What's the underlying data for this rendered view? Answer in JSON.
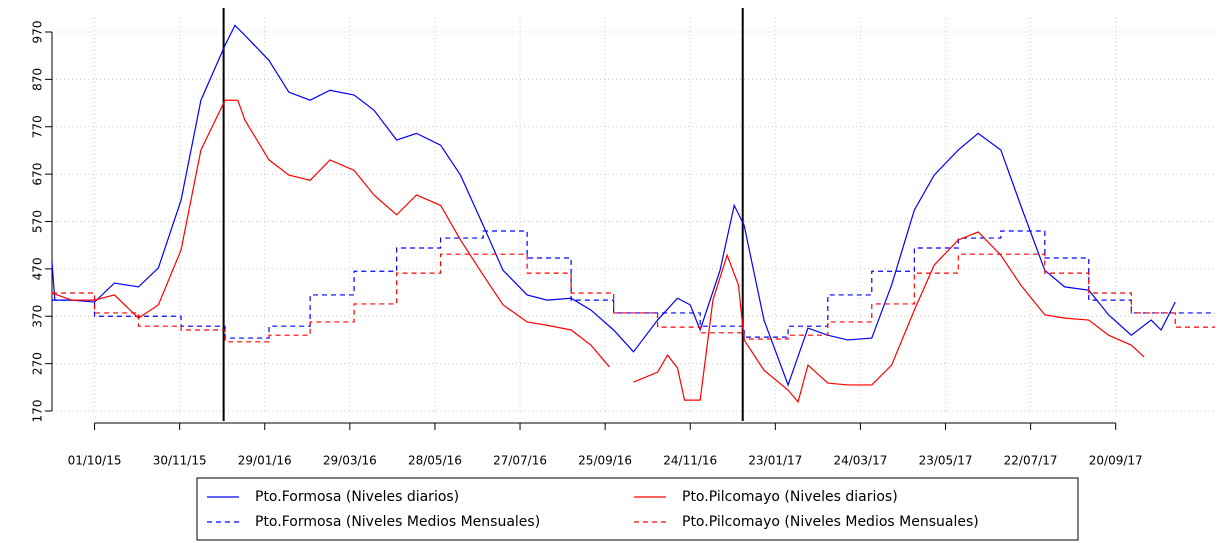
{
  "chart_data": {
    "type": "line",
    "xlim": [
      "01/09/15",
      "29/11/17"
    ],
    "ylim": [
      170,
      1000
    ],
    "xticks": [
      "01/10/15",
      "30/11/15",
      "29/01/16",
      "29/03/16",
      "28/05/16",
      "27/07/16",
      "25/09/16",
      "24/11/16",
      "23/01/17",
      "24/03/17",
      "23/05/17",
      "22/07/17",
      "20/09/17"
    ],
    "yticks": [
      170,
      270,
      370,
      470,
      570,
      670,
      770,
      870,
      970
    ],
    "grid": true,
    "vlines": [
      "31/12/15",
      "31/12/16"
    ],
    "legend": "bottom",
    "series": [
      {
        "name": "Pto.Formosa (Niveles diarios)",
        "color": "#0000ff",
        "line_style": "solid",
        "x": [
          "01/09/15",
          "03/09/15",
          "15/09/15",
          "01/10/15",
          "15/10/15",
          "01/11/15",
          "15/11/15",
          "01/12/15",
          "15/12/15",
          "01/01/16",
          "08/01/16",
          "15/01/16",
          "01/02/16",
          "15/02/16",
          "01/03/16",
          "15/03/16",
          "01/04/16",
          "15/04/16",
          "01/05/16",
          "15/05/16",
          "01/06/16",
          "15/06/16",
          "01/07/16",
          "15/07/16",
          "01/08/16",
          "15/08/16",
          "01/09/16",
          "15/09/16",
          "01/10/16",
          "15/10/16",
          "01/11/16",
          "15/11/16",
          "24/11/16",
          "01/12/16",
          "15/12/16",
          "25/12/16",
          "01/01/17",
          "15/01/17",
          "01/02/17",
          "15/02/17",
          "01/03/17",
          "15/03/17",
          "01/04/17",
          "15/04/17",
          "01/05/17",
          "15/05/17",
          "01/06/17",
          "15/06/17",
          "01/07/17",
          "15/07/17",
          "01/08/17",
          "15/08/17",
          "01/09/17",
          "15/09/17",
          "01/10/17",
          "15/10/17",
          "22/10/17",
          "01/11/17"
        ],
        "values": [
          484,
          404,
          404,
          400,
          440,
          432,
          472,
          615,
          826,
          942,
          984,
          963,
          910,
          843,
          826,
          847,
          837,
          805,
          742,
          756,
          731,
          668,
          562,
          467,
          415,
          404,
          408,
          383,
          341,
          295,
          362,
          408,
          394,
          341,
          467,
          604,
          562,
          362,
          225,
          345,
          330,
          320,
          324,
          436,
          594,
          668,
          721,
          756,
          721,
          604,
          467,
          432,
          425,
          373,
          330,
          362,
          341,
          400
        ]
      },
      {
        "name": "Pto.Formosa (Niveles Medios Mensuales)",
        "color": "#0000ff",
        "line_style": "dashed",
        "step": true,
        "x": [
          "01/09/15",
          "01/10/15",
          "01/11/15",
          "01/12/15",
          "01/01/16",
          "01/02/16",
          "01/03/16",
          "01/04/16",
          "01/05/16",
          "01/06/16",
          "01/07/16",
          "01/08/16",
          "01/09/16",
          "01/10/16",
          "01/11/16",
          "01/12/16",
          "01/01/17",
          "01/02/17",
          "01/03/17",
          "01/04/17",
          "01/05/17",
          "01/06/17",
          "01/07/17",
          "01/08/17",
          "01/09/17",
          "01/10/17",
          "01/11/17",
          "29/11/17"
        ],
        "values": [
          404,
          370,
          370,
          349,
          324,
          349,
          415,
          465,
          514,
          535,
          550,
          493,
          404,
          377,
          377,
          349,
          326,
          349,
          415,
          465,
          514,
          535,
          550,
          493,
          404,
          377,
          377,
          377
        ]
      },
      {
        "name": "Pto.Pilcomayo (Niveles diarios)",
        "color": "#ff0000",
        "line_style": "solid",
        "x": [
          "01/09/15",
          "15/09/15",
          "01/10/15",
          "15/10/15",
          "01/11/15",
          "15/11/15",
          "01/12/15",
          "15/12/15",
          "01/01/16",
          "10/01/16",
          "15/01/16",
          "01/02/16",
          "15/02/16",
          "01/03/16",
          "15/03/16",
          "01/04/16",
          "15/04/16",
          "01/05/16",
          "15/05/16",
          "01/06/16",
          "15/06/16",
          "01/07/16",
          "15/07/16",
          "01/08/16",
          "15/08/16",
          "01/09/16",
          "15/09/16",
          "28/09/16",
          "05/10/16",
          "15/10/16",
          "01/11/16",
          "08/11/16",
          "15/11/16",
          "20/11/16",
          "01/12/16",
          "10/12/16",
          "20/12/16",
          "28/12/16",
          "01/01/17",
          "15/01/17",
          "01/02/17",
          "08/02/17",
          "15/02/17",
          "01/03/17",
          "15/03/17",
          "01/04/17",
          "15/04/17",
          "01/05/17",
          "15/05/17",
          "01/06/17",
          "15/06/17",
          "01/07/17",
          "15/07/17",
          "01/08/17",
          "15/08/17",
          "01/09/17",
          "15/09/17",
          "01/10/17",
          "10/10/17"
        ],
        "values": [
          419,
          404,
          404,
          415,
          366,
          394,
          510,
          721,
          826,
          826,
          784,
          700,
          668,
          657,
          700,
          678,
          626,
          584,
          626,
          604,
          531,
          457,
          394,
          358,
          351,
          341,
          309,
          263,
          null,
          231,
          252,
          288,
          261,
          193,
          193,
          404,
          499,
          436,
          320,
          256,
          214,
          189,
          267,
          229,
          225,
          225,
          267,
          383,
          478,
          531,
          548,
          499,
          436,
          373,
          366,
          362,
          330,
          309,
          284
        ]
      },
      {
        "name": "Pto.Pilcomayo (Niveles Medios Mensuales)",
        "color": "#ff0000",
        "line_style": "dashed",
        "step": true,
        "x": [
          "01/09/15",
          "01/10/15",
          "01/11/15",
          "01/12/15",
          "01/01/16",
          "01/02/16",
          "01/03/16",
          "01/04/16",
          "01/05/16",
          "01/06/16",
          "01/07/16",
          "01/08/16",
          "01/09/16",
          "01/10/16",
          "01/11/16",
          "01/12/16",
          "01/01/17",
          "01/02/17",
          "01/03/17",
          "01/04/17",
          "01/05/17",
          "01/06/17",
          "01/07/17",
          "01/08/17",
          "01/09/17",
          "01/10/17",
          "01/11/17",
          "29/11/17"
        ],
        "values": [
          419,
          377,
          349,
          341,
          316,
          330,
          358,
          396,
          461,
          501,
          501,
          461,
          419,
          377,
          347,
          335,
          322,
          330,
          358,
          396,
          461,
          501,
          501,
          461,
          419,
          377,
          347,
          347
        ]
      }
    ]
  }
}
